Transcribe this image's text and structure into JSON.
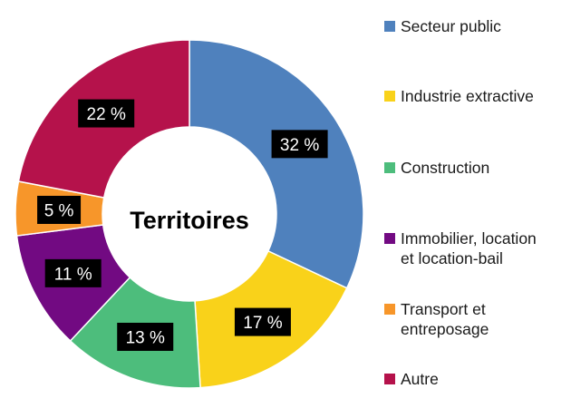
{
  "chart_data": {
    "type": "pie",
    "center_label": "Territoires",
    "categories": [
      "Secteur public",
      "Industrie extractive",
      "Construction",
      "Immobilier, location et location-bail",
      "Transport et entreposage",
      "Autre"
    ],
    "values": [
      32,
      17,
      13,
      11,
      5,
      22
    ],
    "value_labels": [
      "32 %",
      "17 %",
      "13 %",
      "11 %",
      "5 %",
      "22 %"
    ],
    "colors": [
      "#4F81BD",
      "#F9D21A",
      "#4DBD7C",
      "#720A82",
      "#F7962A",
      "#B5124B"
    ],
    "legend_position": "right"
  },
  "legend": {
    "items": [
      {
        "label": "Secteur public",
        "color": "#4F81BD"
      },
      {
        "label": "Industrie extractive",
        "color": "#F9D21A"
      },
      {
        "label": "Construction",
        "color": "#4DBD7C"
      },
      {
        "label": "Immobilier, location\net location-bail",
        "color": "#720A82"
      },
      {
        "label": "Transport et\nentreposage",
        "color": "#F7962A"
      },
      {
        "label": "Autre",
        "color": "#B5124B"
      }
    ]
  }
}
